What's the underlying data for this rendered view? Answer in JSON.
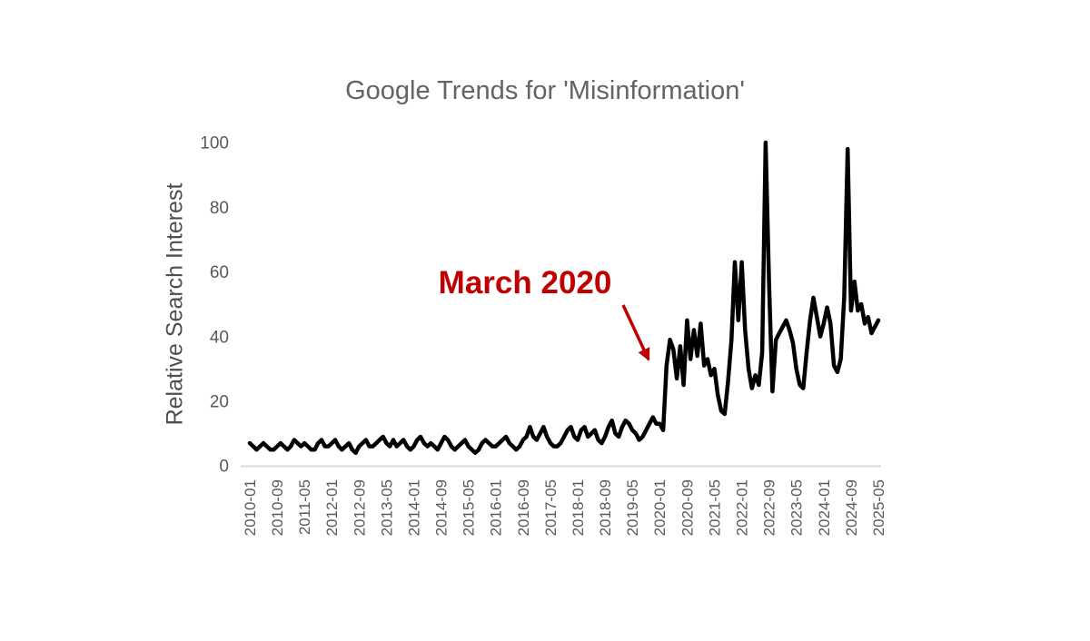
{
  "page": {
    "title": "Google Trends for 'Misinformation'"
  },
  "chart_data": {
    "type": "line",
    "title": "Google Trends for 'Misinformation'",
    "xlabel": "",
    "ylabel": "Relative Search Interest",
    "x_start": "2010-01",
    "x_end": "2025-05",
    "x_interval": "monthly",
    "x_tick_labels": [
      "2010-01",
      "2010-09",
      "2011-05",
      "2012-01",
      "2012-09",
      "2013-05",
      "2014-01",
      "2014-09",
      "2015-05",
      "2016-01",
      "2016-09",
      "2017-05",
      "2018-01",
      "2018-09",
      "2019-05",
      "2020-01",
      "2020-09",
      "2021-05",
      "2022-01",
      "2022-09",
      "2023-05",
      "2024-01",
      "2024-09",
      "2025-05"
    ],
    "x_tick_step_months": 8,
    "yticks": [
      0,
      20,
      40,
      60,
      80,
      100
    ],
    "ylim": [
      0,
      100
    ],
    "grid": false,
    "legend": "none",
    "series": [
      {
        "name": "misinformation",
        "values": [
          7,
          6,
          5,
          6,
          7,
          6,
          5,
          5,
          6,
          7,
          6,
          5,
          6,
          8,
          7,
          6,
          7,
          6,
          5,
          5,
          7,
          8,
          6,
          6,
          7,
          8,
          6,
          5,
          6,
          7,
          5,
          4,
          6,
          7,
          8,
          6,
          6,
          7,
          8,
          9,
          7,
          6,
          8,
          6,
          7,
          8,
          6,
          5,
          6,
          8,
          9,
          7,
          6,
          7,
          6,
          5,
          7,
          9,
          8,
          6,
          5,
          6,
          7,
          8,
          6,
          5,
          4,
          5,
          7,
          8,
          7,
          6,
          6,
          7,
          8,
          9,
          7,
          6,
          5,
          6,
          8,
          9,
          12,
          9,
          8,
          10,
          12,
          9,
          7,
          6,
          6,
          7,
          9,
          11,
          12,
          9,
          8,
          11,
          12,
          9,
          10,
          11,
          8,
          7,
          9,
          12,
          14,
          10,
          9,
          12,
          14,
          13,
          11,
          10,
          8,
          9,
          11,
          13,
          15,
          13,
          13,
          11,
          31,
          39,
          36,
          27,
          37,
          25,
          45,
          33,
          42,
          34,
          44,
          31,
          33,
          28,
          30,
          22,
          17,
          16,
          26,
          39,
          63,
          45,
          63,
          42,
          30,
          24,
          28,
          25,
          35,
          100,
          56,
          23,
          39,
          41,
          43,
          45,
          42,
          38,
          30,
          25,
          24,
          35,
          45,
          52,
          46,
          40,
          44,
          49,
          44,
          31,
          29,
          33,
          52,
          98,
          48,
          57,
          48,
          50,
          44,
          46,
          41,
          43,
          45
        ]
      }
    ],
    "annotation": {
      "label": "March 2020",
      "points_to_month": "2020-03"
    },
    "colors": {
      "line": "#000000",
      "annotation": "#c00000",
      "axis_line": "#d9d9d9",
      "tick_text": "#595959",
      "title_text": "#646464"
    }
  }
}
